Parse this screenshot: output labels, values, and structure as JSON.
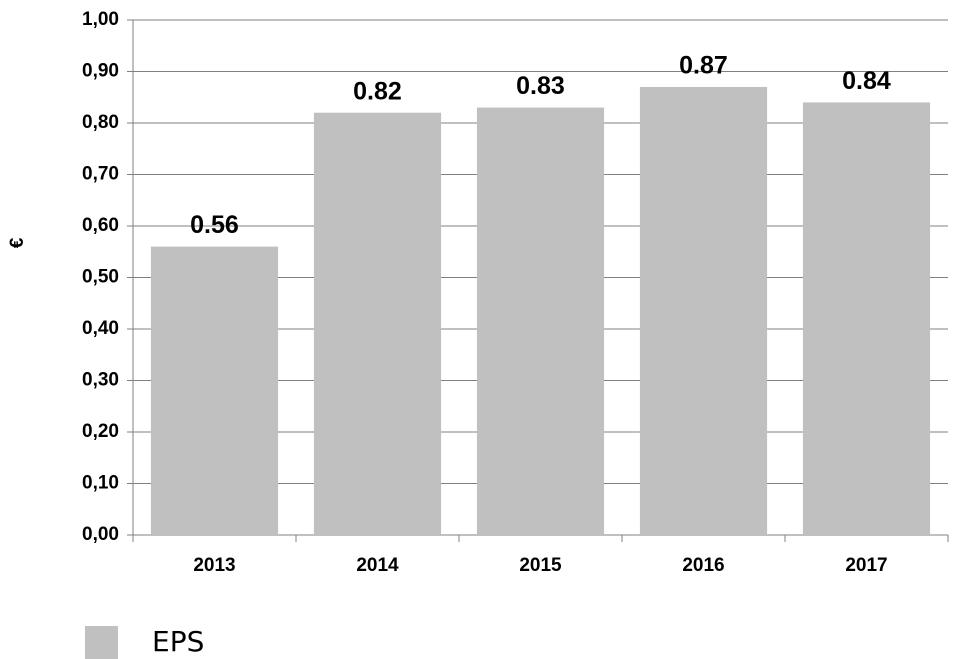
{
  "chart_data": {
    "type": "bar",
    "y_label": "€",
    "categories": [
      "2013",
      "2014",
      "2015",
      "2016",
      "2017"
    ],
    "series": [
      {
        "name": "EPS",
        "color": "#c0c0c0",
        "values": [
          0.56,
          0.82,
          0.83,
          0.87,
          0.84
        ]
      }
    ],
    "ylim": [
      0,
      1
    ],
    "yticks": [
      {
        "value": 0,
        "label": "0,00"
      },
      {
        "value": 0.1,
        "label": "0,10"
      },
      {
        "value": 0.2,
        "label": "0,20"
      },
      {
        "value": 0.3,
        "label": "0,30"
      },
      {
        "value": 0.4,
        "label": "0,40"
      },
      {
        "value": 0.5,
        "label": "0,50"
      },
      {
        "value": 0.6,
        "label": "0,60"
      },
      {
        "value": 0.7,
        "label": "0,70"
      },
      {
        "value": 0.8,
        "label": "0,80"
      },
      {
        "value": 0.9,
        "label": "0,90"
      },
      {
        "value": 1,
        "label": "1,00"
      }
    ],
    "grid": true,
    "legend": "bottom-left"
  }
}
